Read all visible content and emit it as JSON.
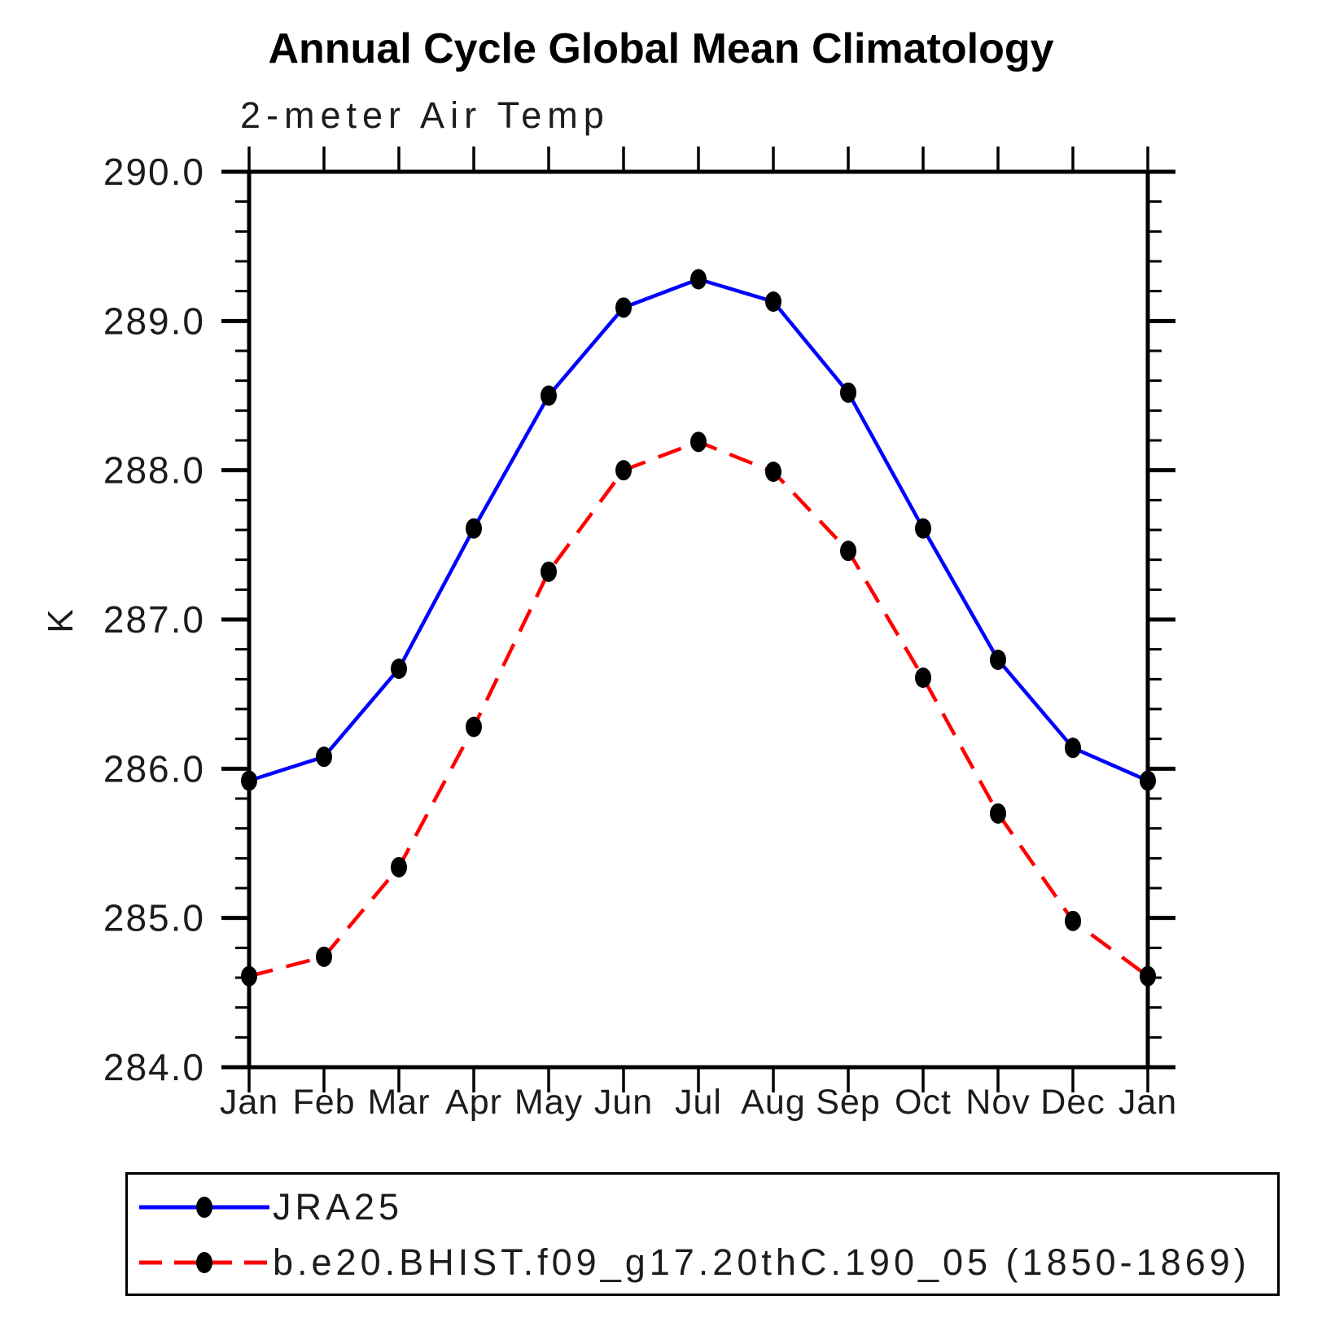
{
  "chart": {
    "title": "Annual Cycle Global Mean Climatology",
    "subtitle": "2-meter Air Temp",
    "ylabel": "K"
  },
  "chart_data": {
    "type": "line",
    "title": "Annual Cycle Global Mean Climatology",
    "subtitle": "2-meter Air Temp",
    "xlabel": "",
    "ylabel": "K",
    "categories": [
      "Jan",
      "Feb",
      "Mar",
      "Apr",
      "May",
      "Jun",
      "Jul",
      "Aug",
      "Sep",
      "Oct",
      "Nov",
      "Dec",
      "Jan"
    ],
    "ylim": [
      284.0,
      290.0
    ],
    "y_major_step": 1.0,
    "y_minor_step": 0.2,
    "y_tick_labels": [
      "290.0",
      "289.0",
      "288.0",
      "287.0",
      "286.0",
      "285.0",
      "284.0"
    ],
    "grid": false,
    "legend_position": "bottom-left-box",
    "marker_color": "#000000",
    "axis_color": "#000000",
    "series": [
      {
        "name": "JRA25",
        "color": "#0000ff",
        "line_style": "solid",
        "values": [
          285.92,
          286.08,
          286.67,
          287.61,
          288.5,
          289.09,
          289.28,
          289.13,
          288.52,
          287.61,
          286.73,
          286.14,
          285.92
        ]
      },
      {
        "name": "b.e20.BHIST.f09_g17.20thC.190_05 (1850-1869)",
        "color": "#ff0000",
        "line_style": "dashed",
        "values": [
          284.61,
          284.74,
          285.34,
          286.28,
          287.32,
          288.0,
          288.19,
          287.99,
          287.46,
          286.61,
          285.7,
          284.98,
          284.61
        ]
      }
    ]
  }
}
